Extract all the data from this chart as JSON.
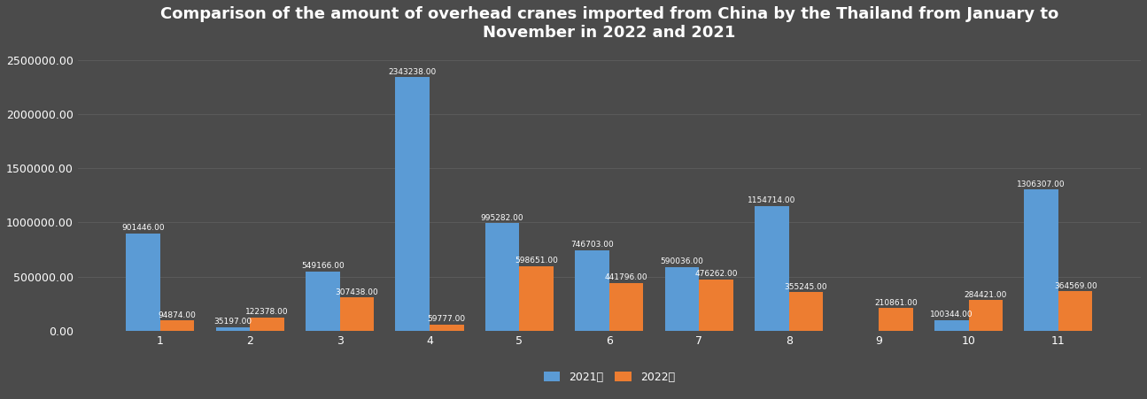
{
  "title": "Comparison of the amount of overhead cranes imported from China by the Thailand from January to\nNovember in 2022 and 2021",
  "months": [
    1,
    2,
    3,
    4,
    5,
    6,
    7,
    8,
    9,
    10,
    11
  ],
  "values_2021": [
    901446,
    35197,
    549166,
    2343238,
    995282,
    746703,
    590036,
    1154714,
    0,
    100344,
    1306307
  ],
  "values_2022": [
    94874,
    122378,
    307438,
    59777,
    598651,
    441796,
    476262,
    355245,
    210861,
    284421,
    364569
  ],
  "labels_2021": [
    "901446.00",
    "35197.00",
    "549166.00",
    "2343238.00",
    "995282.00",
    "746703.00",
    "590036.00",
    "1154714.00",
    "",
    "100344.00",
    "1306307.00"
  ],
  "labels_2022": [
    "94874.00",
    "122378.00",
    "307438.00",
    "59777.00",
    "598651.00",
    "441796.00",
    "476262.00",
    "355245.00",
    "210861.00",
    "284421.00",
    "364569.00"
  ],
  "color_2021": "#5B9BD5",
  "color_2022": "#ED7D31",
  "background_color": "#4B4B4B",
  "plot_background": "#4B4B4B",
  "text_color": "#FFFFFF",
  "grid_color": "#5D5D5D",
  "legend_2021": "2021年",
  "legend_2022": "2022年",
  "ylim": [
    0,
    2600000
  ],
  "yticks": [
    0,
    500000,
    1000000,
    1500000,
    2000000,
    2500000
  ],
  "ytick_labels": [
    "0.00",
    "500000.00",
    "1000000.00",
    "1500000.00",
    "2000000.00",
    "2500000.00"
  ],
  "bar_width": 0.38,
  "title_fontsize": 13,
  "label_fontsize": 6.5,
  "tick_fontsize": 9,
  "legend_fontsize": 9
}
